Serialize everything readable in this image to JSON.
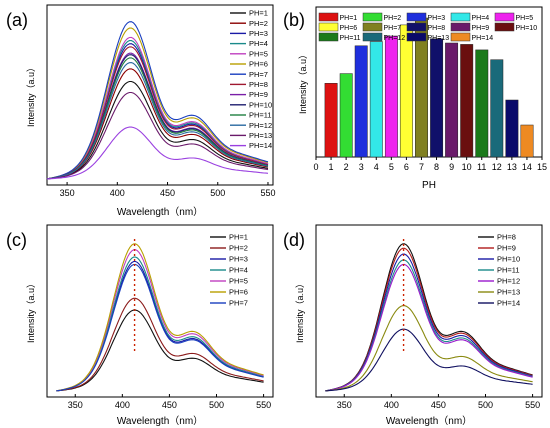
{
  "chart_data": [
    {
      "panel": "(a)",
      "type": "line",
      "xlabel": "Wavelength（nm）",
      "ylabel": "Intensity（a.u）",
      "xlim": [
        330,
        555
      ],
      "ylim": [
        0,
        1.08
      ],
      "xticks": [
        350,
        400,
        450,
        500,
        550
      ],
      "profile_peak": 413,
      "series": [
        {
          "name": "PH=1",
          "color": "#111111",
          "peak": 0.62
        },
        {
          "name": "PH=2",
          "color": "#8B0000",
          "peak": 0.7
        },
        {
          "name": "PH=3",
          "color": "#1a1aa6",
          "peak": 0.86
        },
        {
          "name": "PH=4",
          "color": "#1a8a8a",
          "peak": 0.88
        },
        {
          "name": "PH=5",
          "color": "#c040c0",
          "peak": 0.9
        },
        {
          "name": "PH=6",
          "color": "#b8a000",
          "peak": 0.96
        },
        {
          "name": "PH=7",
          "color": "#1a3fbf",
          "peak": 1.0
        },
        {
          "name": "PH=8",
          "color": "#a01830",
          "peak": 0.84
        },
        {
          "name": "PH=9",
          "color": "#7a1fa8",
          "peak": 0.8
        },
        {
          "name": "PH=10",
          "color": "#202070",
          "peak": 0.79
        },
        {
          "name": "PH=11",
          "color": "#208040",
          "peak": 0.77
        },
        {
          "name": "PH=12",
          "color": "#2a6aa0",
          "peak": 0.74
        },
        {
          "name": "PH=13",
          "color": "#6a1a6a",
          "peak": 0.55
        },
        {
          "name": "PH=14",
          "color": "#9a40e0",
          "peak": 0.33
        }
      ]
    },
    {
      "panel": "(b)",
      "type": "bar",
      "xlabel": "PH",
      "ylabel": "Intensity（a.u）",
      "ylim": [
        0,
        1.05
      ],
      "xlim": [
        0,
        15
      ],
      "xticks": [
        0,
        1,
        2,
        3,
        4,
        5,
        6,
        7,
        8,
        9,
        10,
        11,
        12,
        13,
        14,
        15
      ],
      "categories": [
        1,
        2,
        3,
        4,
        5,
        6,
        7,
        8,
        9,
        10,
        11,
        12,
        13,
        14
      ],
      "series": [
        {
          "name": "PH=1",
          "color": "#dd1111",
          "value": 0.53
        },
        {
          "name": "PH=2",
          "color": "#33dd33",
          "value": 0.6
        },
        {
          "name": "PH=3",
          "color": "#1f2fdd",
          "value": 0.8
        },
        {
          "name": "PH=4",
          "color": "#33e8e8",
          "value": 0.83
        },
        {
          "name": "PH=5",
          "color": "#ee22ee",
          "value": 0.87
        },
        {
          "name": "PH=6",
          "color": "#ffff33",
          "value": 0.95
        },
        {
          "name": "PH=7",
          "color": "#808020",
          "value": 1.0
        },
        {
          "name": "PH=8",
          "color": "#10106a",
          "value": 0.85
        },
        {
          "name": "PH=9",
          "color": "#6a1a6a",
          "value": 0.82
        },
        {
          "name": "PH=10",
          "color": "#6a0f0f",
          "value": 0.81
        },
        {
          "name": "PH=11",
          "color": "#1a7a1a",
          "value": 0.77
        },
        {
          "name": "PH=12",
          "color": "#1a6a7a",
          "value": 0.7
        },
        {
          "name": "PH=13",
          "color": "#0a0a6a",
          "value": 0.41
        },
        {
          "name": "PH=14",
          "color": "#ee8a22",
          "value": 0.23
        }
      ]
    },
    {
      "panel": "(c)",
      "type": "line",
      "xlabel": "Wavelength（nm）",
      "ylabel": "Intensity（a.u）",
      "xlim": [
        320,
        560
      ],
      "ylim": [
        0,
        1.1
      ],
      "xticks": [
        350,
        400,
        450,
        500,
        550
      ],
      "profile_peak": 413,
      "series": [
        {
          "name": "PH=1",
          "color": "#111111",
          "peak": 0.55
        },
        {
          "name": "PH=2",
          "color": "#8B1a1a",
          "peak": 0.63
        },
        {
          "name": "PH=3",
          "color": "#1a1aa6",
          "peak": 0.88
        },
        {
          "name": "PH=4",
          "color": "#1a8a8a",
          "peak": 0.91
        },
        {
          "name": "PH=5",
          "color": "#c040c0",
          "peak": 0.96
        },
        {
          "name": "PH=6",
          "color": "#b8a000",
          "peak": 1.0
        },
        {
          "name": "PH=7",
          "color": "#1a3fbf",
          "peak": 0.86
        }
      ]
    },
    {
      "panel": "(d)",
      "type": "line",
      "xlabel": "Wavelength（nm）",
      "ylabel": "Intensity（a.u）",
      "xlim": [
        320,
        560
      ],
      "ylim": [
        0,
        1.1
      ],
      "xticks": [
        350,
        400,
        450,
        500,
        550
      ],
      "profile_peak": 413,
      "series": [
        {
          "name": "PH=8",
          "color": "#111111",
          "peak": 1.0
        },
        {
          "name": "PH=9",
          "color": "#b01a1a",
          "peak": 0.97
        },
        {
          "name": "PH=10",
          "color": "#1a1aa6",
          "peak": 0.93
        },
        {
          "name": "PH=11",
          "color": "#1a8a8a",
          "peak": 0.89
        },
        {
          "name": "PH=12",
          "color": "#9a1acc",
          "peak": 0.86
        },
        {
          "name": "PH=13",
          "color": "#8a8a10",
          "peak": 0.58
        },
        {
          "name": "PH=14",
          "color": "#101060",
          "peak": 0.42
        }
      ]
    }
  ]
}
